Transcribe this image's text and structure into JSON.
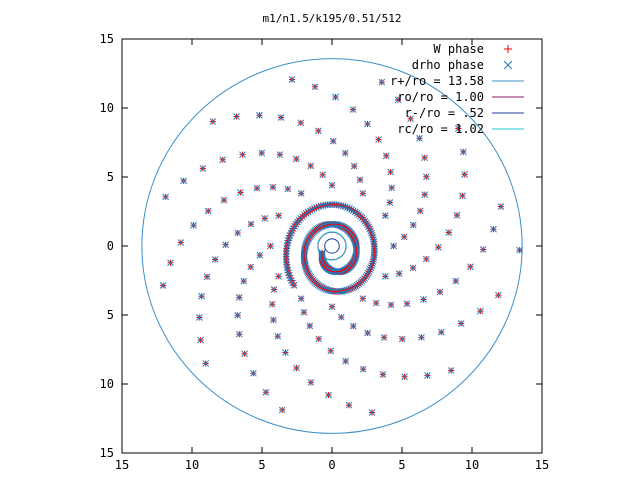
{
  "chart_data": {
    "type": "scatter",
    "title": "m1/n1.5/k195/0.51/512",
    "xlabel": "",
    "ylabel": "",
    "xlim": [
      -15,
      15
    ],
    "ylim": [
      -15,
      15
    ],
    "x_tick_values": [
      -15,
      -10,
      -5,
      0,
      5,
      10,
      15
    ],
    "x_tick_labels": [
      "15",
      "10",
      "5",
      "0",
      "5",
      "10",
      "15"
    ],
    "y_tick_values": [
      15,
      10,
      5,
      0,
      -5,
      -10,
      -15
    ],
    "y_tick_labels": [
      "15",
      "10",
      "5",
      "0",
      "5",
      "10",
      "15"
    ],
    "grid": false,
    "legend_position": "top-right",
    "series": [
      {
        "name": "W phase",
        "kind": "points",
        "marker": "plus",
        "color": "#ff0000"
      },
      {
        "name": "drho phase",
        "kind": "points",
        "marker": "cross",
        "color": "#1f7bbf"
      },
      {
        "name": "r+/ro = 13.58",
        "kind": "circle",
        "radius": 13.58,
        "color": "#3d8fc9"
      },
      {
        "name": "ro/ro = 1.00",
        "kind": "circle",
        "radius": 1.0,
        "color": "#8b1a6e"
      },
      {
        "name": "r-/ro = .52",
        "kind": "circle",
        "radius": 0.52,
        "color": "#1b3f9e"
      },
      {
        "name": "rc/ro = 1.02",
        "kind": "circle",
        "radius": 1.02,
        "color": "#22c4d6"
      }
    ],
    "pattern": {
      "spiral_arms": 12,
      "outer_radius": 13.58,
      "inner_spiral_start_radius": 1.0,
      "inner_spiral_end_radius": 4.0,
      "marker_at_outer_edge": [
        13.4,
        -0.3
      ]
    }
  }
}
